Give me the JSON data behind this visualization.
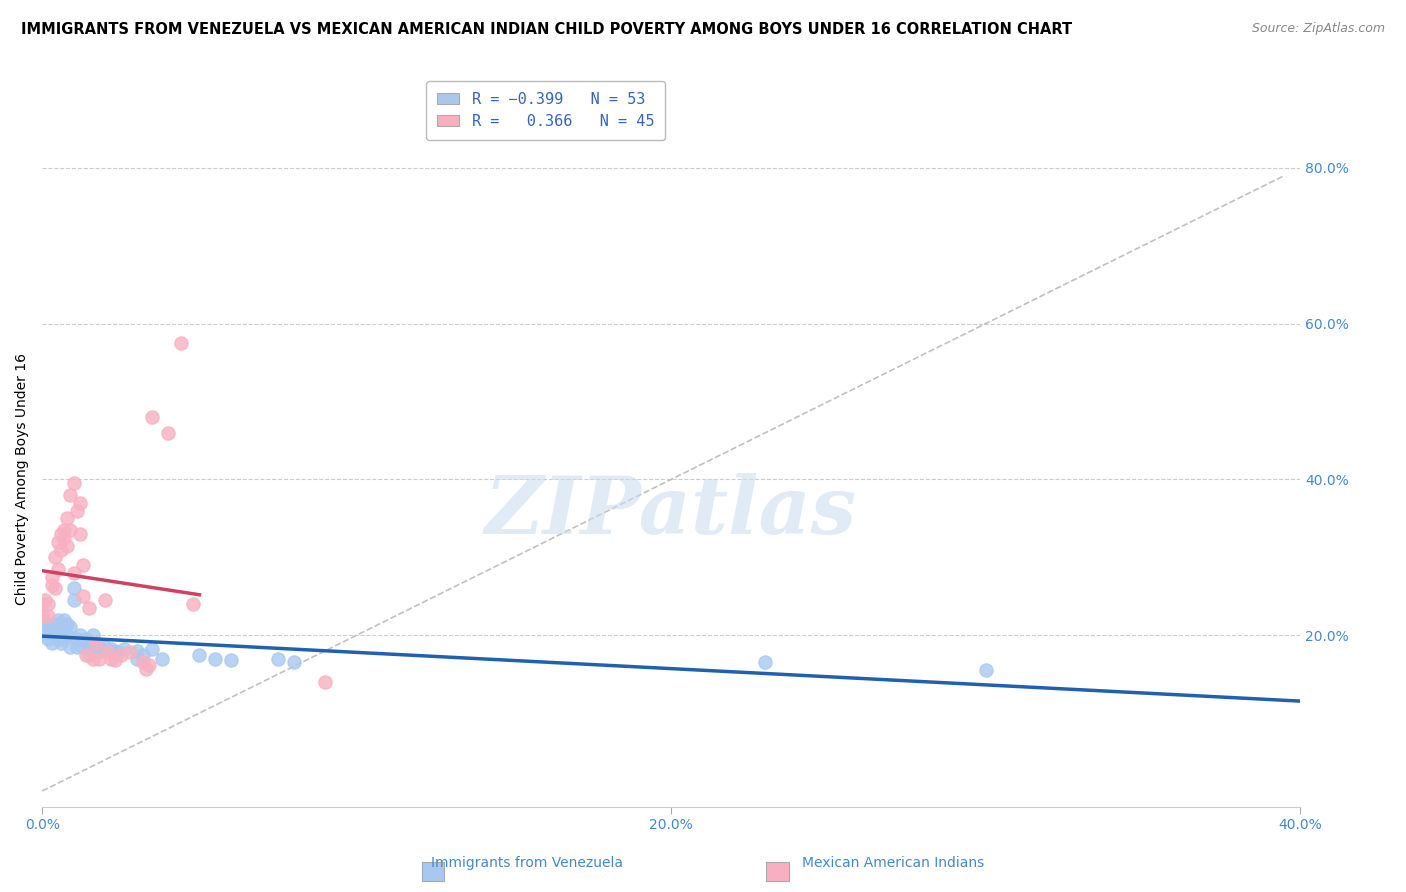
{
  "title": "IMMIGRANTS FROM VENEZUELA VS MEXICAN AMERICAN INDIAN CHILD POVERTY AMONG BOYS UNDER 16 CORRELATION CHART",
  "source": "Source: ZipAtlas.com",
  "ylabel": "Child Poverty Among Boys Under 16",
  "xlim": [
    0.0,
    0.4
  ],
  "ylim": [
    -0.02,
    0.82
  ],
  "xtick_labels": [
    "0.0%",
    "20.0%",
    "40.0%"
  ],
  "xtick_vals": [
    0.0,
    0.2,
    0.4
  ],
  "ytick_labels": [
    "20.0%",
    "40.0%",
    "60.0%",
    "80.0%"
  ],
  "ytick_vals": [
    0.2,
    0.4,
    0.6,
    0.8
  ],
  "legend_labels": [
    "Immigrants from Venezuela",
    "Mexican American Indians"
  ],
  "legend_r": [
    "-0.399",
    "0.366"
  ],
  "legend_n": [
    "53",
    "45"
  ],
  "watermark": "ZIPatlas",
  "blue_color": "#A8C8F0",
  "pink_color": "#F8B0C0",
  "blue_line_color": "#2060B0",
  "pink_line_color": "#D04060",
  "dashed_line_color": "#C0C0C0",
  "blue_scatter": [
    [
      0.0,
      0.22
    ],
    [
      0.0,
      0.2
    ],
    [
      0.001,
      0.21
    ],
    [
      0.002,
      0.215
    ],
    [
      0.002,
      0.195
    ],
    [
      0.003,
      0.21
    ],
    [
      0.003,
      0.19
    ],
    [
      0.004,
      0.215
    ],
    [
      0.004,
      0.205
    ],
    [
      0.005,
      0.22
    ],
    [
      0.005,
      0.21
    ],
    [
      0.005,
      0.195
    ],
    [
      0.006,
      0.215
    ],
    [
      0.006,
      0.205
    ],
    [
      0.006,
      0.19
    ],
    [
      0.007,
      0.22
    ],
    [
      0.007,
      0.21
    ],
    [
      0.007,
      0.195
    ],
    [
      0.008,
      0.215
    ],
    [
      0.008,
      0.2
    ],
    [
      0.009,
      0.21
    ],
    [
      0.009,
      0.185
    ],
    [
      0.01,
      0.26
    ],
    [
      0.01,
      0.245
    ],
    [
      0.011,
      0.195
    ],
    [
      0.011,
      0.185
    ],
    [
      0.012,
      0.2
    ],
    [
      0.013,
      0.185
    ],
    [
      0.014,
      0.195
    ],
    [
      0.015,
      0.185
    ],
    [
      0.015,
      0.175
    ],
    [
      0.016,
      0.2
    ],
    [
      0.017,
      0.185
    ],
    [
      0.017,
      0.18
    ],
    [
      0.018,
      0.185
    ],
    [
      0.019,
      0.18
    ],
    [
      0.02,
      0.185
    ],
    [
      0.022,
      0.182
    ],
    [
      0.023,
      0.18
    ],
    [
      0.024,
      0.178
    ],
    [
      0.026,
      0.182
    ],
    [
      0.03,
      0.18
    ],
    [
      0.03,
      0.17
    ],
    [
      0.032,
      0.175
    ],
    [
      0.035,
      0.182
    ],
    [
      0.038,
      0.17
    ],
    [
      0.05,
      0.175
    ],
    [
      0.055,
      0.17
    ],
    [
      0.06,
      0.168
    ],
    [
      0.075,
      0.17
    ],
    [
      0.08,
      0.165
    ],
    [
      0.23,
      0.165
    ],
    [
      0.3,
      0.155
    ]
  ],
  "pink_scatter": [
    [
      0.0,
      0.24
    ],
    [
      0.0,
      0.225
    ],
    [
      0.001,
      0.245
    ],
    [
      0.002,
      0.24
    ],
    [
      0.002,
      0.225
    ],
    [
      0.003,
      0.265
    ],
    [
      0.003,
      0.275
    ],
    [
      0.004,
      0.26
    ],
    [
      0.004,
      0.3
    ],
    [
      0.005,
      0.285
    ],
    [
      0.005,
      0.32
    ],
    [
      0.006,
      0.31
    ],
    [
      0.006,
      0.33
    ],
    [
      0.007,
      0.325
    ],
    [
      0.007,
      0.335
    ],
    [
      0.008,
      0.315
    ],
    [
      0.008,
      0.35
    ],
    [
      0.009,
      0.335
    ],
    [
      0.009,
      0.38
    ],
    [
      0.01,
      0.395
    ],
    [
      0.01,
      0.28
    ],
    [
      0.011,
      0.36
    ],
    [
      0.012,
      0.33
    ],
    [
      0.012,
      0.37
    ],
    [
      0.013,
      0.29
    ],
    [
      0.013,
      0.25
    ],
    [
      0.014,
      0.175
    ],
    [
      0.015,
      0.235
    ],
    [
      0.016,
      0.17
    ],
    [
      0.017,
      0.19
    ],
    [
      0.018,
      0.17
    ],
    [
      0.02,
      0.245
    ],
    [
      0.021,
      0.178
    ],
    [
      0.022,
      0.17
    ],
    [
      0.023,
      0.168
    ],
    [
      0.025,
      0.175
    ],
    [
      0.028,
      0.178
    ],
    [
      0.032,
      0.165
    ],
    [
      0.033,
      0.157
    ],
    [
      0.034,
      0.162
    ],
    [
      0.035,
      0.48
    ],
    [
      0.04,
      0.46
    ],
    [
      0.044,
      0.575
    ],
    [
      0.048,
      0.24
    ],
    [
      0.09,
      0.14
    ]
  ],
  "title_fontsize": 10.5,
  "axis_label_fontsize": 10,
  "tick_fontsize": 10,
  "legend_fontsize": 11,
  "source_fontsize": 9
}
